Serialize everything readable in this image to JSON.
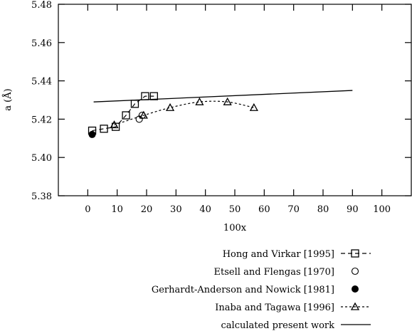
{
  "chart_data": {
    "type": "scatter",
    "xlabel": "100x",
    "ylabel": "a (Å)",
    "xlim": [
      -10,
      110
    ],
    "ylim": [
      5.38,
      5.48
    ],
    "xticks": [
      0,
      10,
      20,
      30,
      40,
      50,
      60,
      70,
      80,
      90,
      100
    ],
    "yticks": [
      "5.38",
      "5.40",
      "5.42",
      "5.44",
      "5.46",
      "5.48"
    ],
    "legend_position": "below the plot, right",
    "series": [
      {
        "name": "Hong and Virkar [1995]",
        "marker": "square",
        "line": "dashed",
        "x": [
          1.5,
          5.5,
          9.5,
          13,
          16,
          19.5,
          22.5
        ],
        "y": [
          5.414,
          5.415,
          5.416,
          5.422,
          5.428,
          5.432,
          5.432
        ]
      },
      {
        "name": "Etsell and Flengas [1970]",
        "marker": "open-circle",
        "line": "none",
        "x": [
          17.5,
          18.5
        ],
        "y": [
          5.42,
          5.422
        ]
      },
      {
        "name": "Gerhardt-Anderson and Nowick [1981]",
        "marker": "filled-circle",
        "line": "none",
        "x": [
          1.5
        ],
        "y": [
          5.412
        ]
      },
      {
        "name": "Inaba and Tagawa [1996]",
        "marker": "triangle",
        "line": "dotted",
        "x": [
          9,
          19,
          28,
          38,
          47.5,
          56.5
        ],
        "y": [
          5.417,
          5.422,
          5.426,
          5.429,
          5.429,
          5.426
        ]
      },
      {
        "name": "calculated present work",
        "marker": "none",
        "line": "solid",
        "x": [
          2,
          90
        ],
        "y": [
          5.429,
          5.435
        ]
      }
    ]
  }
}
